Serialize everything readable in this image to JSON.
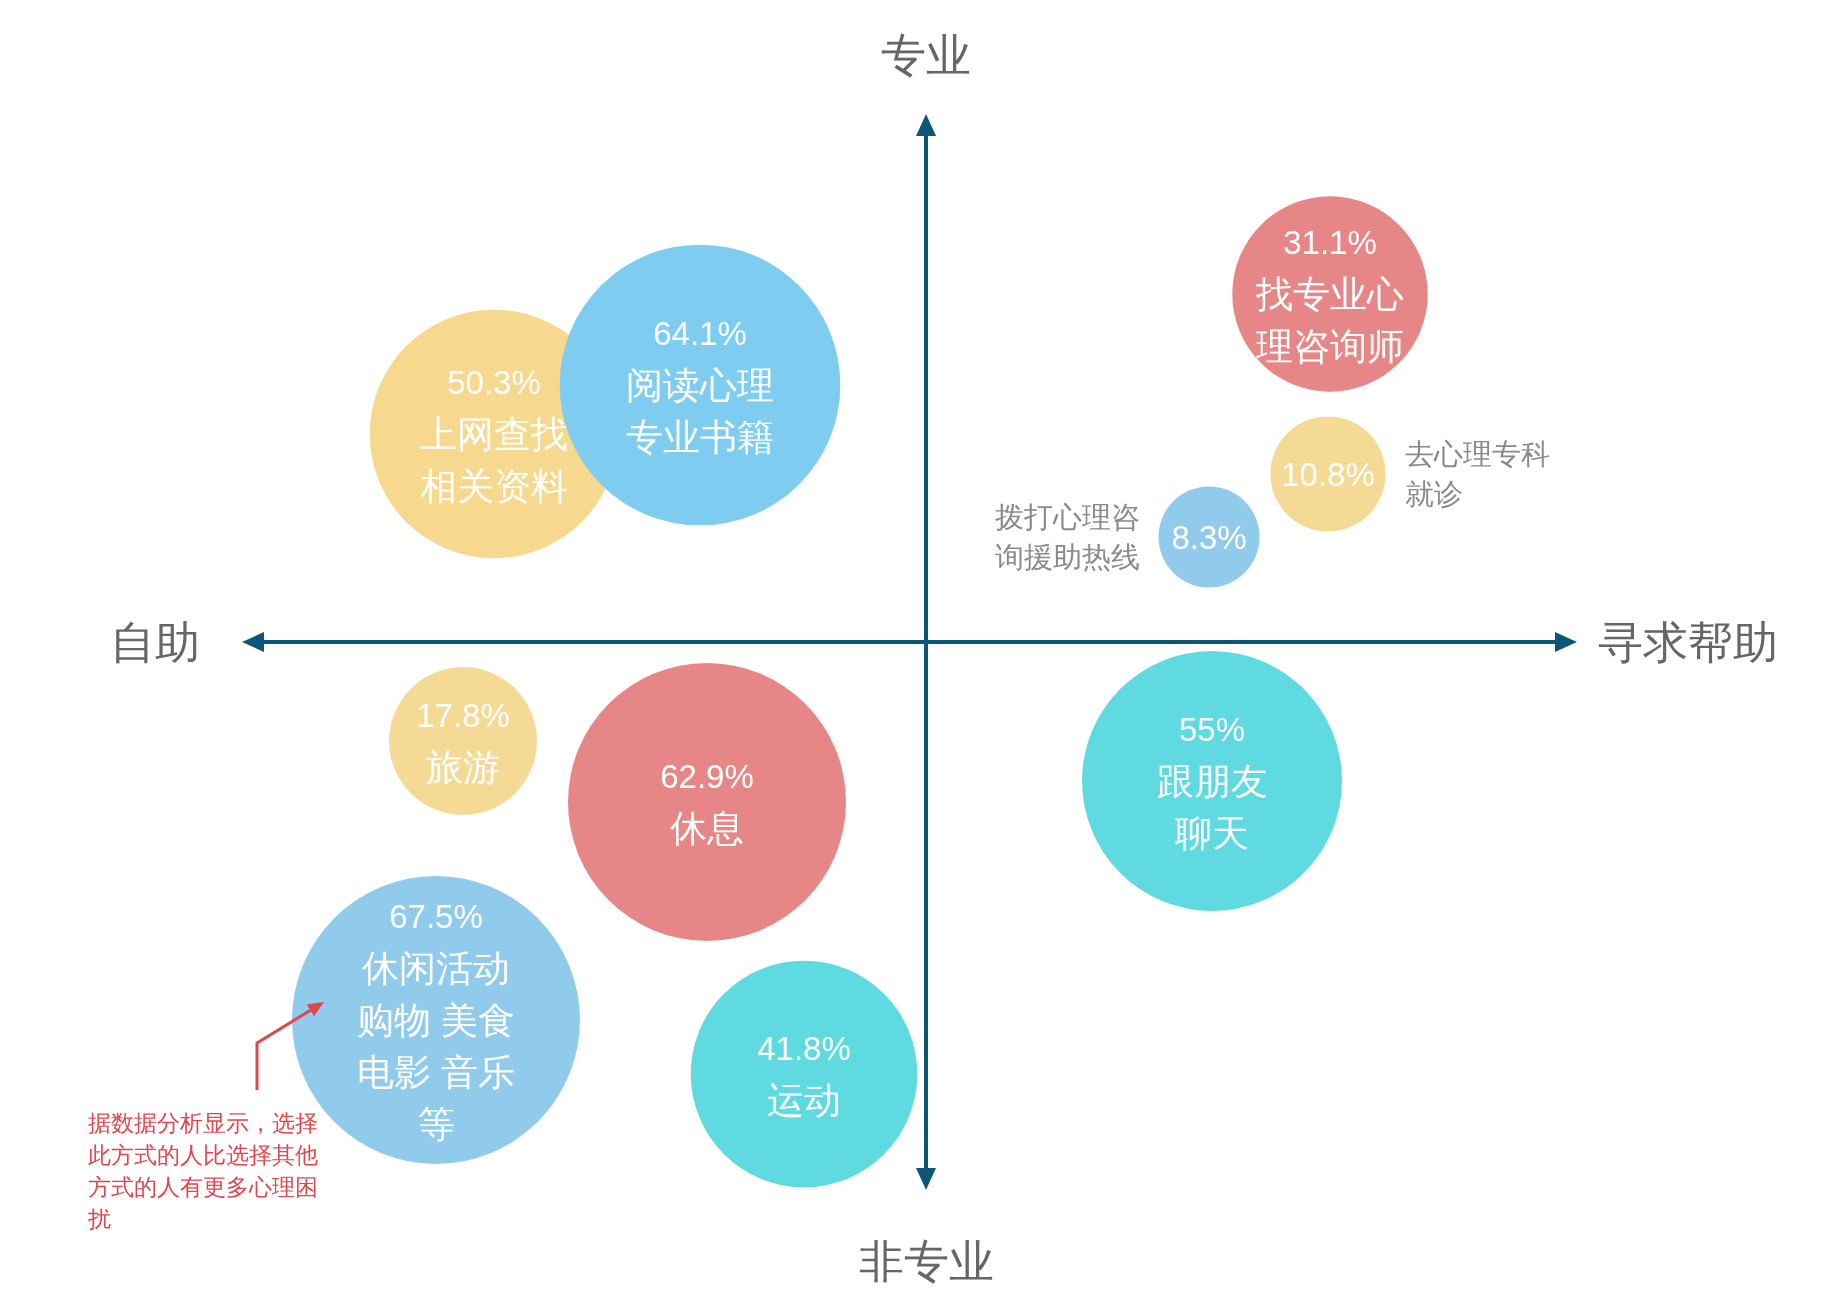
{
  "chart_data": {
    "type": "other",
    "categories": [
      "上网查找相关资料",
      "阅读心理专业书籍",
      "找专业心理咨询师",
      "去心理专科就诊",
      "拨打心理咨询援助热线",
      "旅游",
      "休息",
      "跟朋友聊天",
      "休闲活动购物 美食电影 音乐等",
      "运动"
    ],
    "values": [
      50.3,
      64.1,
      31.1,
      10.8,
      8.3,
      17.8,
      62.9,
      55,
      67.5,
      41.8
    ],
    "value_labels": [
      "50.3%",
      "64.1%",
      "31.1%",
      "10.8%",
      "8.3%",
      "17.8%",
      "62.9%",
      "55%",
      "67.5%",
      "41.8%"
    ],
    "colors": [
      "#f6d98f",
      "#7ecdf0",
      "#e68687",
      "#f5da96",
      "#90cbec",
      "#f5da96",
      "#e68687",
      "#5fdae1",
      "#90cbec",
      "#5fdae1"
    ],
    "annotations": [
      "专业",
      "自助",
      "寻求帮助",
      "非专业",
      "据数据分析显示，选择此方式的人比选择其他方式的人有更多心理困扰"
    ]
  }
}
